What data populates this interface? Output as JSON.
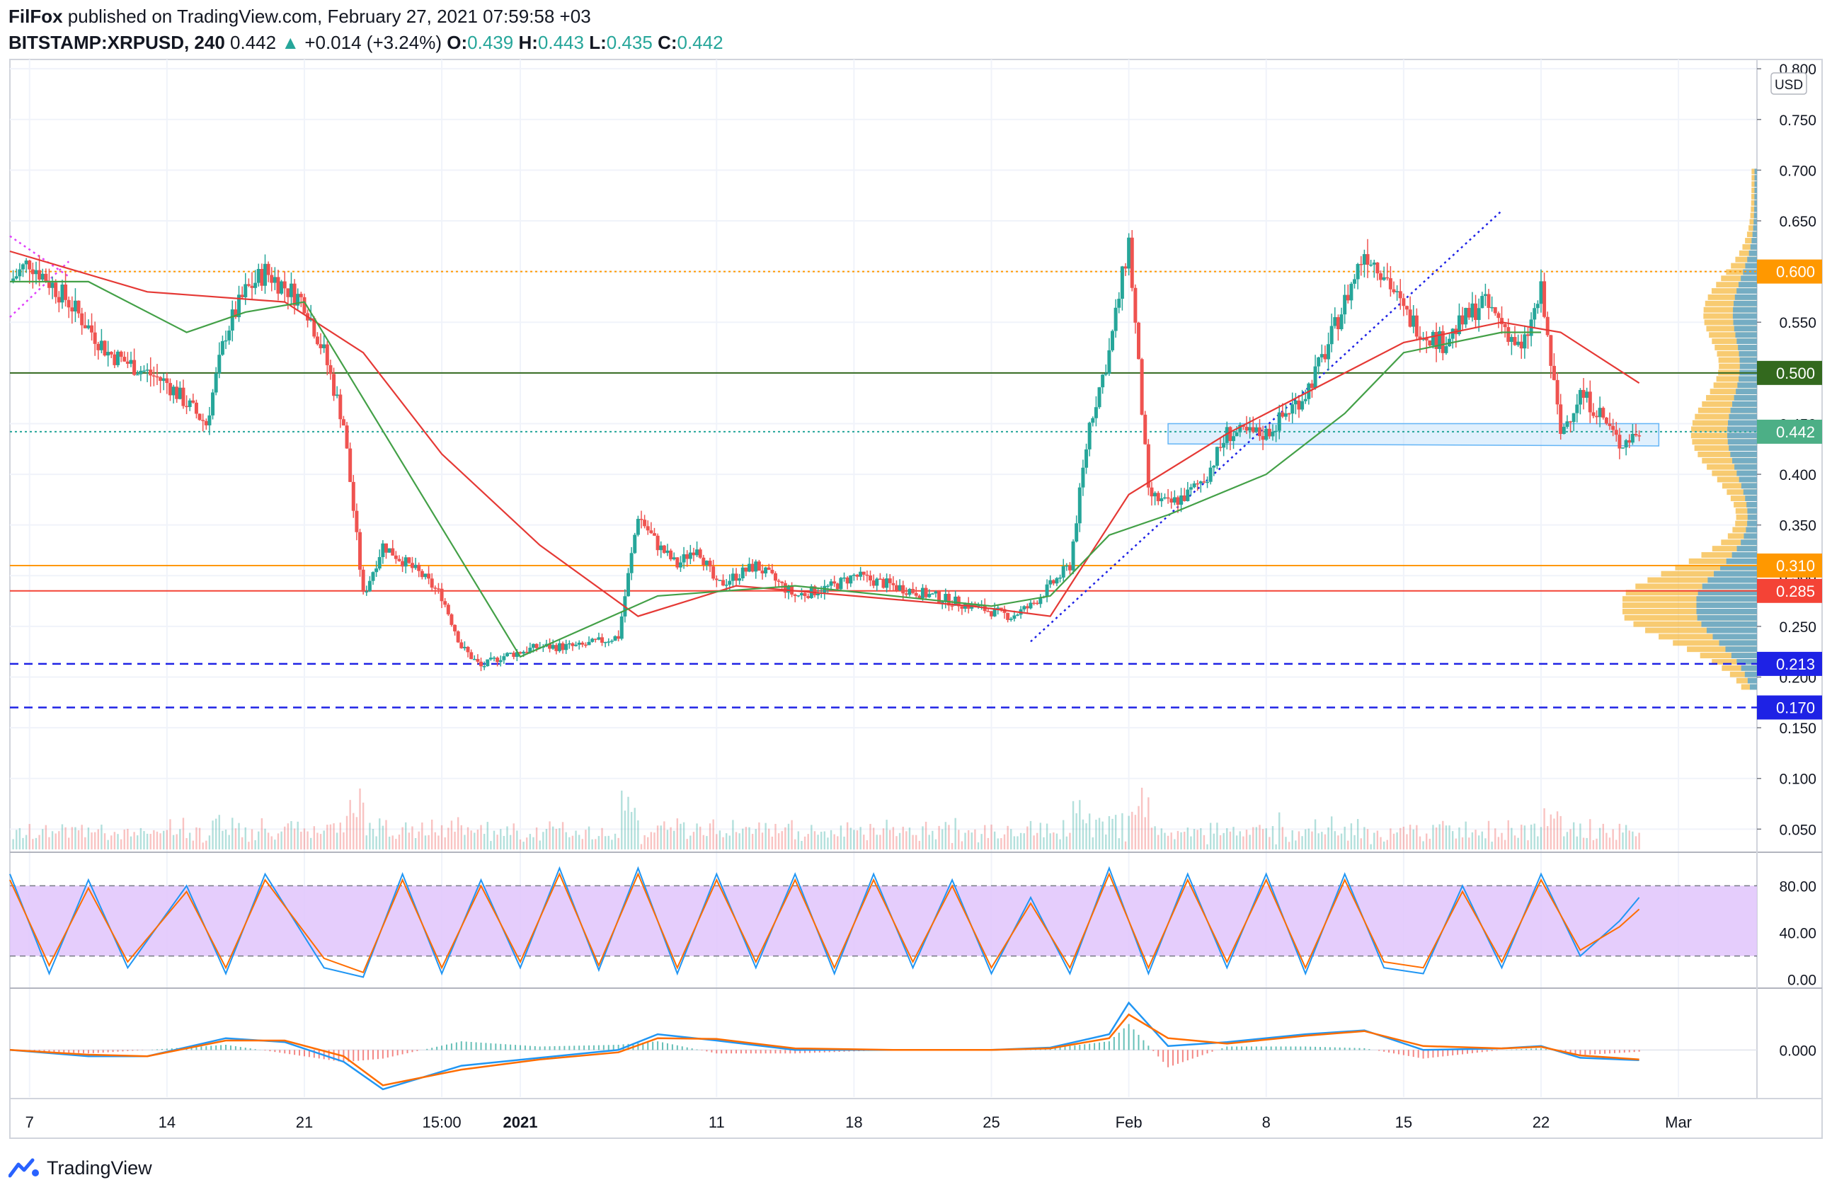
{
  "header": {
    "author": "FilFox",
    "published_text": "published on TradingView.com, February 27, 2021 07:59:58 +03",
    "symbol": "BITSTAMP:XRPUSD, 240",
    "last": "0.442",
    "change_arrow": "▲",
    "change": "+0.014 (+3.24%)",
    "open_label": "O:",
    "open": "0.439",
    "high_label": "H:",
    "high": "0.443",
    "low_label": "L:",
    "low": "0.435",
    "close_label": "C:",
    "close": "0.442"
  },
  "footer": {
    "brand": "TradingView",
    "logo_icon": "tradingview-logo-icon"
  },
  "colors": {
    "up": "#26a69a",
    "down": "#ef5350",
    "ma_red": "#e53935",
    "ma_green": "#43a047",
    "level_orange": "#ff9800",
    "level_green": "#33691e",
    "level_red": "#f44336",
    "level_blue": "#1e22e5",
    "stoch_fill": "#e1c4fb",
    "blue_line": "#2196f3",
    "orange_line": "#ff6d00"
  },
  "chart_data": [
    {
      "type": "candlestick",
      "title": "",
      "price_axis": {
        "unit_label": "USD",
        "ticks": [
          0.8,
          0.75,
          0.7,
          0.65,
          0.6,
          0.55,
          0.5,
          0.45,
          0.4,
          0.35,
          0.3,
          0.25,
          0.2,
          0.15,
          0.1,
          0.05
        ],
        "tick_labels": [
          "0.800",
          "0.750",
          "0.700",
          "0.650",
          "0.600",
          "0.550",
          "0.500",
          "0.450",
          "0.400",
          "0.350",
          "0.300",
          "0.250",
          "0.200",
          "0.150",
          "0.100",
          "0.050"
        ],
        "ylim": [
          0.03,
          0.805
        ]
      },
      "time_axis": {
        "labels": [
          "7",
          "14",
          "21",
          "15:00",
          "2021",
          "11",
          "18",
          "25",
          "Feb",
          "8",
          "15",
          "22",
          "Mar"
        ],
        "label_dates": [
          "2020-12-07",
          "2020-12-14",
          "2020-12-21",
          "2020-12-28",
          "2021-01-01",
          "2021-01-11",
          "2021-01-18",
          "2021-01-25",
          "2021-02-01",
          "2021-02-08",
          "2021-02-15",
          "2021-02-22",
          "2021-03-01"
        ],
        "range": [
          "2020-12-06",
          "2021-03-05"
        ]
      },
      "close_series": {
        "dates": [
          "2020-12-06",
          "2020-12-07",
          "2020-12-09",
          "2020-12-11",
          "2020-12-13",
          "2020-12-14",
          "2020-12-16",
          "2020-12-17",
          "2020-12-18",
          "2020-12-19",
          "2020-12-21",
          "2020-12-22",
          "2020-12-23",
          "2020-12-24",
          "2020-12-25",
          "2020-12-27",
          "2020-12-28",
          "2020-12-29",
          "2020-12-30",
          "2020-12-31",
          "2021-01-02",
          "2021-01-04",
          "2021-01-06",
          "2021-01-07",
          "2021-01-08",
          "2021-01-09",
          "2021-01-10",
          "2021-01-11",
          "2021-01-13",
          "2021-01-15",
          "2021-01-17",
          "2021-01-18",
          "2021-01-20",
          "2021-01-22",
          "2021-01-24",
          "2021-01-26",
          "2021-01-27",
          "2021-01-28",
          "2021-01-29",
          "2021-01-30",
          "2021-01-31",
          "2021-02-01",
          "2021-02-02",
          "2021-02-03",
          "2021-02-04",
          "2021-02-05",
          "2021-02-06",
          "2021-02-08",
          "2021-02-09",
          "2021-02-10",
          "2021-02-11",
          "2021-02-12",
          "2021-02-13",
          "2021-02-14",
          "2021-02-15",
          "2021-02-16",
          "2021-02-17",
          "2021-02-18",
          "2021-02-19",
          "2021-02-20",
          "2021-02-21",
          "2021-02-22",
          "2021-02-23",
          "2021-02-24",
          "2021-02-25",
          "2021-02-26",
          "2021-02-27"
        ],
        "close": [
          0.59,
          0.61,
          0.57,
          0.52,
          0.5,
          0.49,
          0.45,
          0.54,
          0.58,
          0.6,
          0.57,
          0.52,
          0.45,
          0.28,
          0.33,
          0.3,
          0.28,
          0.23,
          0.21,
          0.22,
          0.23,
          0.23,
          0.24,
          0.36,
          0.33,
          0.31,
          0.33,
          0.29,
          0.31,
          0.28,
          0.29,
          0.3,
          0.29,
          0.28,
          0.27,
          0.26,
          0.27,
          0.29,
          0.31,
          0.45,
          0.52,
          0.63,
          0.38,
          0.37,
          0.38,
          0.4,
          0.44,
          0.44,
          0.46,
          0.48,
          0.52,
          0.57,
          0.62,
          0.6,
          0.56,
          0.54,
          0.53,
          0.55,
          0.57,
          0.55,
          0.52,
          0.58,
          0.44,
          0.48,
          0.46,
          0.43,
          0.442
        ]
      },
      "moving_averages": [
        {
          "color": "#e53935",
          "dates": [
            "2020-12-06",
            "2020-12-13",
            "2020-12-20",
            "2020-12-24",
            "2020-12-28",
            "2021-01-02",
            "2021-01-07",
            "2021-01-12",
            "2021-01-18",
            "2021-01-24",
            "2021-01-28",
            "2021-02-01",
            "2021-02-06",
            "2021-02-10",
            "2021-02-15",
            "2021-02-20",
            "2021-02-23",
            "2021-02-27"
          ],
          "values": [
            0.62,
            0.58,
            0.57,
            0.52,
            0.42,
            0.33,
            0.26,
            0.29,
            0.28,
            0.27,
            0.26,
            0.38,
            0.44,
            0.48,
            0.53,
            0.55,
            0.54,
            0.49
          ]
        },
        {
          "color": "#43a047",
          "dates": [
            "2020-12-06",
            "2020-12-10",
            "2020-12-15",
            "2020-12-18",
            "2020-12-21",
            "2021-01-01",
            "2021-01-08",
            "2021-01-15",
            "2021-01-25",
            "2021-01-28",
            "2021-01-31",
            "2021-02-03",
            "2021-02-08",
            "2021-02-12",
            "2021-02-15",
            "2021-02-20",
            "2021-02-22"
          ],
          "values": [
            0.59,
            0.59,
            0.54,
            0.56,
            0.57,
            0.22,
            0.28,
            0.29,
            0.27,
            0.28,
            0.34,
            0.36,
            0.4,
            0.46,
            0.52,
            0.54,
            0.54
          ]
        }
      ],
      "levels": [
        {
          "value": "0.600",
          "color": "#ff9800",
          "style": "dotted"
        },
        {
          "value": "0.500",
          "color": "#33691e",
          "style": "solid"
        },
        {
          "value": "0.442",
          "color": "#26a69a",
          "style": "dotted",
          "badge": "last"
        },
        {
          "value": "0.310",
          "color": "#ff9800",
          "style": "solid"
        },
        {
          "value": "0.285",
          "color": "#f44336",
          "style": "solid"
        },
        {
          "value": "0.213",
          "color": "#1e22e5",
          "style": "dashed"
        },
        {
          "value": "0.170",
          "color": "#1e22e5",
          "style": "dashed"
        }
      ],
      "trendlines": [
        {
          "color": "#1e22e5",
          "style": "dotted",
          "points": [
            [
              "2021-01-27",
              0.235
            ],
            [
              "2021-02-20",
              0.66
            ]
          ]
        },
        {
          "color": "#e040fb",
          "style": "dotted",
          "points": [
            [
              "2020-12-06",
              0.555
            ],
            [
              "2020-12-09",
              0.61
            ]
          ]
        },
        {
          "color": "#e040fb",
          "style": "dotted",
          "points": [
            [
              "2020-12-06",
              0.635
            ],
            [
              "2020-12-09",
              0.595
            ]
          ]
        }
      ],
      "zone": {
        "color": "#bbdefb",
        "points": [
          [
            "2021-02-03",
            0.45
          ],
          [
            "2021-02-28",
            0.45
          ],
          [
            "2021-02-28",
            0.428
          ],
          [
            "2021-02-03",
            0.43
          ]
        ]
      },
      "volume_profile": {
        "note": "histogram on right side"
      }
    },
    {
      "type": "line",
      "title": "",
      "name": "stochastic-rsi",
      "ticks": [
        80,
        40,
        0
      ],
      "tick_labels": [
        "80.00",
        "40.00",
        "0.00"
      ],
      "bands": [
        20,
        80
      ],
      "ylim": [
        -5,
        105
      ],
      "series": [
        {
          "color": "#2196f3",
          "dates": [
            "2020-12-06",
            "2020-12-08",
            "2020-12-10",
            "2020-12-12",
            "2020-12-15",
            "2020-12-17",
            "2020-12-19",
            "2020-12-22",
            "2020-12-24",
            "2020-12-26",
            "2020-12-28",
            "2020-12-30",
            "2021-01-01",
            "2021-01-03",
            "2021-01-05",
            "2021-01-07",
            "2021-01-09",
            "2021-01-11",
            "2021-01-13",
            "2021-01-15",
            "2021-01-17",
            "2021-01-19",
            "2021-01-21",
            "2021-01-23",
            "2021-01-25",
            "2021-01-27",
            "2021-01-29",
            "2021-01-31",
            "2021-02-02",
            "2021-02-04",
            "2021-02-06",
            "2021-02-08",
            "2021-02-10",
            "2021-02-12",
            "2021-02-14",
            "2021-02-16",
            "2021-02-18",
            "2021-02-20",
            "2021-02-22",
            "2021-02-24",
            "2021-02-26",
            "2021-02-27"
          ],
          "values": [
            90,
            5,
            85,
            10,
            80,
            5,
            90,
            10,
            2,
            90,
            5,
            85,
            10,
            95,
            8,
            95,
            5,
            90,
            10,
            90,
            5,
            90,
            10,
            85,
            5,
            70,
            5,
            95,
            5,
            90,
            10,
            90,
            5,
            90,
            10,
            5,
            80,
            10,
            90,
            20,
            50,
            70
          ]
        },
        {
          "color": "#ff6d00",
          "dates": [
            "2020-12-06",
            "2020-12-08",
            "2020-12-10",
            "2020-12-12",
            "2020-12-15",
            "2020-12-17",
            "2020-12-19",
            "2020-12-22",
            "2020-12-24",
            "2020-12-26",
            "2020-12-28",
            "2020-12-30",
            "2021-01-01",
            "2021-01-03",
            "2021-01-05",
            "2021-01-07",
            "2021-01-09",
            "2021-01-11",
            "2021-01-13",
            "2021-01-15",
            "2021-01-17",
            "2021-01-19",
            "2021-01-21",
            "2021-01-23",
            "2021-01-25",
            "2021-01-27",
            "2021-01-29",
            "2021-01-31",
            "2021-02-02",
            "2021-02-04",
            "2021-02-06",
            "2021-02-08",
            "2021-02-10",
            "2021-02-12",
            "2021-02-14",
            "2021-02-16",
            "2021-02-18",
            "2021-02-20",
            "2021-02-22",
            "2021-02-24",
            "2021-02-26",
            "2021-02-27"
          ],
          "values": [
            85,
            12,
            78,
            15,
            75,
            10,
            85,
            18,
            6,
            85,
            10,
            80,
            15,
            90,
            12,
            90,
            10,
            85,
            15,
            85,
            10,
            85,
            15,
            80,
            10,
            65,
            10,
            90,
            10,
            85,
            15,
            85,
            10,
            85,
            15,
            10,
            75,
            15,
            85,
            25,
            45,
            60
          ]
        }
      ]
    },
    {
      "type": "line",
      "title": "",
      "name": "macd",
      "ticks": [
        0
      ],
      "tick_labels": [
        "0.000"
      ],
      "ylim": [
        -0.06,
        0.075
      ],
      "series": [
        {
          "color": "#2196f3",
          "dates": [
            "2020-12-06",
            "2020-12-10",
            "2020-12-13",
            "2020-12-17",
            "2020-12-20",
            "2020-12-23",
            "2020-12-25",
            "2020-12-29",
            "2021-01-02",
            "2021-01-06",
            "2021-01-08",
            "2021-01-11",
            "2021-01-15",
            "2021-01-20",
            "2021-01-25",
            "2021-01-28",
            "2021-01-31",
            "2021-02-01",
            "2021-02-03",
            "2021-02-06",
            "2021-02-10",
            "2021-02-13",
            "2021-02-16",
            "2021-02-20",
            "2021-02-22",
            "2021-02-24",
            "2021-02-27"
          ],
          "values": [
            0.0,
            -0.008,
            -0.008,
            0.015,
            0.01,
            -0.015,
            -0.05,
            -0.02,
            -0.01,
            0.0,
            0.02,
            0.012,
            0.0,
            0.0,
            0.0,
            0.003,
            0.02,
            0.06,
            0.005,
            0.01,
            0.02,
            0.025,
            0.0,
            0.002,
            0.005,
            -0.01,
            -0.013
          ]
        },
        {
          "color": "#ff6d00",
          "dates": [
            "2020-12-06",
            "2020-12-10",
            "2020-12-13",
            "2020-12-17",
            "2020-12-20",
            "2020-12-23",
            "2020-12-25",
            "2020-12-29",
            "2021-01-02",
            "2021-01-06",
            "2021-01-08",
            "2021-01-11",
            "2021-01-15",
            "2021-01-20",
            "2021-01-25",
            "2021-01-28",
            "2021-01-31",
            "2021-02-01",
            "2021-02-03",
            "2021-02-06",
            "2021-02-10",
            "2021-02-13",
            "2021-02-16",
            "2021-02-20",
            "2021-02-22",
            "2021-02-24",
            "2021-02-27"
          ],
          "values": [
            0.0,
            -0.006,
            -0.008,
            0.012,
            0.012,
            -0.008,
            -0.045,
            -0.025,
            -0.012,
            -0.003,
            0.015,
            0.014,
            0.002,
            0.0,
            0.0,
            0.002,
            0.015,
            0.045,
            0.015,
            0.008,
            0.018,
            0.024,
            0.005,
            0.002,
            0.004,
            -0.007,
            -0.012
          ]
        }
      ]
    }
  ]
}
